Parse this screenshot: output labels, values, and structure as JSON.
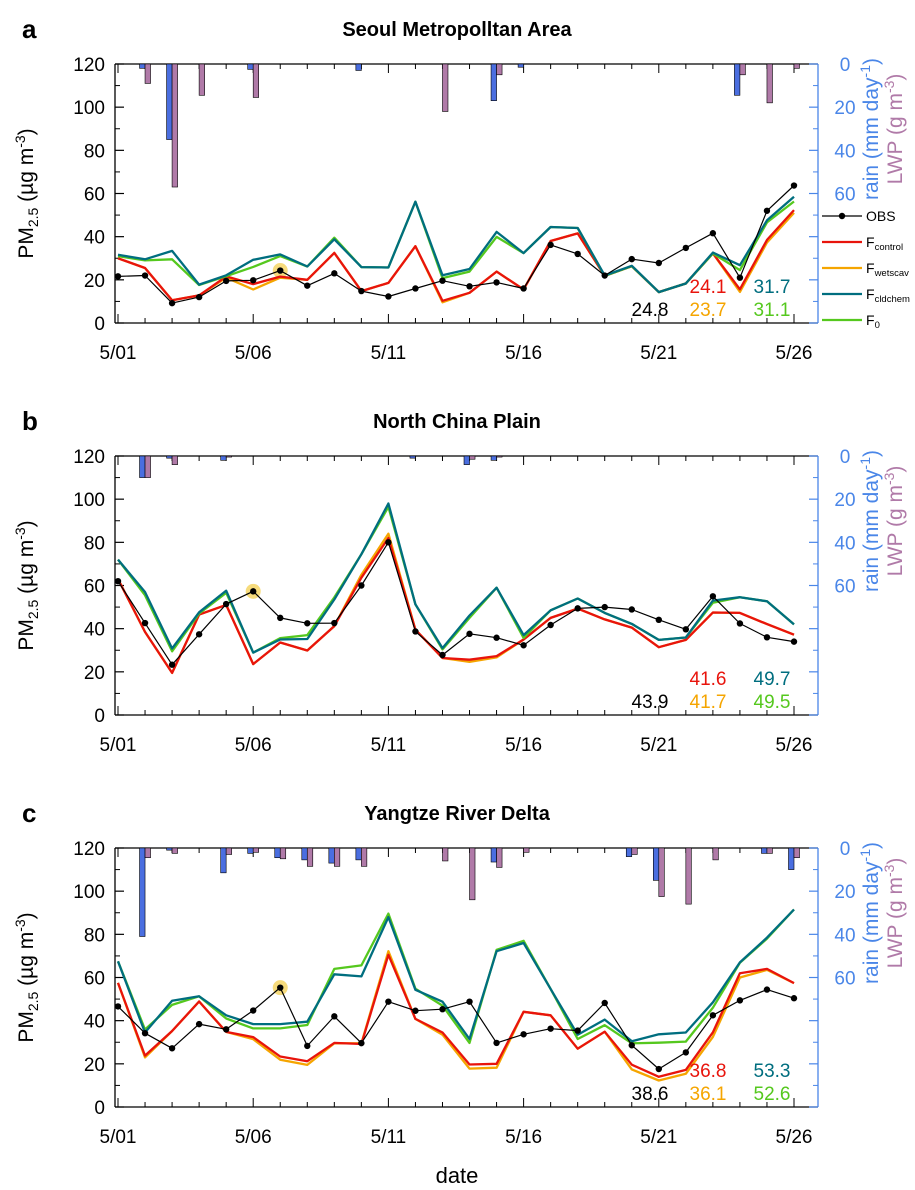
{
  "figure": {
    "xlabel": "date",
    "legend": [
      "OBS",
      "F",
      "F",
      "F",
      "F"
    ],
    "legend_sub": [
      "",
      "control",
      "wetscav",
      "cldchem",
      "0"
    ],
    "pm_label_main": "PM",
    "pm_label_sub": "2.5",
    "pm_label_unit": " (µg m",
    "pm_label_sup": "-3",
    "pm_label_end": ")",
    "rain_label_main": "rain (mm day",
    "rain_label_sup": "-1",
    "rain_label_end": ")",
    "lwp_label_main": "LWP (g m",
    "lwp_label_sup": "-3",
    "lwp_label_end": ")",
    "colors": {
      "obs": "#000000",
      "control": "#e8140c",
      "wetscav": "#f5a500",
      "cldchem": "#006e7f",
      "f0": "#55c81e",
      "rain": "#4a6ee0",
      "lwp": "#b07aa8",
      "right_axis": "#4a86e8",
      "highlight": "#f5d76e"
    }
  },
  "chart_data": [
    {
      "type": "line",
      "panel_letter": "a",
      "title": "Seoul Metropolltan Area",
      "x": [
        "5/01",
        "5/02",
        "5/03",
        "5/04",
        "5/05",
        "5/06",
        "5/07",
        "5/08",
        "5/09",
        "5/10",
        "5/11",
        "5/12",
        "5/13",
        "5/14",
        "5/15",
        "5/16",
        "5/17",
        "5/18",
        "5/19",
        "5/20",
        "5/21",
        "5/22",
        "5/23",
        "5/24",
        "5/25",
        "5/26"
      ],
      "x_ticks": [
        "5/01",
        "5/06",
        "5/11",
        "5/16",
        "5/21",
        "5/26"
      ],
      "ylim": [
        0,
        120
      ],
      "y_ticks": [
        0,
        20,
        40,
        60,
        80,
        100,
        120
      ],
      "rain_lim": [
        0,
        60
      ],
      "rain_ticks": [
        0,
        20,
        40,
        60
      ],
      "highlight_date": "5/07",
      "series": [
        {
          "key": "obs",
          "values": [
            21.6,
            22,
            9.2,
            12,
            19.5,
            19.8,
            24.3,
            17.3,
            23,
            14.8,
            12.3,
            16,
            19.6,
            17,
            18.8,
            16,
            36.2,
            32,
            22,
            29.6,
            27.8,
            34.8,
            41.6,
            21,
            52,
            63.7
          ]
        },
        {
          "key": "control",
          "values": [
            30,
            25.5,
            10.5,
            12.8,
            21.6,
            18,
            21.5,
            20,
            32.5,
            14.8,
            18.6,
            35.6,
            10.3,
            14,
            23.8,
            15.5,
            38,
            41.5,
            21.8,
            26.3,
            14.3,
            18.3,
            32.3,
            15.6,
            38.5,
            52.3
          ]
        },
        {
          "key": "wetscav",
          "values": [
            30,
            25.5,
            10.5,
            12.8,
            21,
            15.5,
            21,
            20,
            32.5,
            14.8,
            18.6,
            35.6,
            9.6,
            14,
            23.8,
            15.5,
            38,
            41.5,
            21.8,
            26.3,
            14.3,
            18.3,
            32.3,
            14.4,
            37.3,
            51
          ]
        },
        {
          "key": "cldchem",
          "values": [
            31.6,
            29.5,
            33.4,
            17.8,
            22.1,
            29.3,
            31.8,
            26.2,
            38.8,
            25.9,
            25.7,
            56.2,
            22.1,
            25,
            42.2,
            32.4,
            44.5,
            44,
            22,
            26.5,
            14.3,
            18.3,
            32.6,
            26.8,
            47.6,
            58.5
          ]
        },
        {
          "key": "f0",
          "values": [
            31,
            29,
            29.5,
            17.6,
            21.7,
            26,
            31,
            26.2,
            39.5,
            25.9,
            25.7,
            56.2,
            20.8,
            23.8,
            39.9,
            32.4,
            44.5,
            44,
            21.8,
            26.3,
            14.3,
            18.3,
            32.2,
            24.5,
            46.6,
            56.3
          ]
        }
      ],
      "rain": [
        0,
        2,
        35,
        0,
        0,
        2.5,
        0,
        0,
        0,
        3,
        0,
        0,
        0,
        0,
        17,
        1.5,
        0,
        0,
        0,
        0,
        0,
        0,
        0,
        14.5,
        0,
        0
      ],
      "lwp": [
        0,
        9,
        57,
        14.5,
        0,
        15.5,
        0,
        0,
        0,
        0,
        0,
        0,
        22,
        0,
        5,
        0,
        0,
        0,
        0,
        0,
        0,
        0,
        0,
        5,
        18,
        2
      ],
      "means": {
        "obs": "24.8",
        "control": "24.1",
        "wetscav": "23.7",
        "cldchem": "31.7",
        "f0": "31.1"
      }
    },
    {
      "type": "line",
      "panel_letter": "b",
      "title": "North China Plain",
      "x": [
        "5/01",
        "5/02",
        "5/03",
        "5/04",
        "5/05",
        "5/06",
        "5/07",
        "5/08",
        "5/09",
        "5/10",
        "5/11",
        "5/12",
        "5/13",
        "5/14",
        "5/15",
        "5/16",
        "5/17",
        "5/18",
        "5/19",
        "5/20",
        "5/21",
        "5/22",
        "5/23",
        "5/24",
        "5/25",
        "5/26"
      ],
      "x_ticks": [
        "5/01",
        "5/06",
        "5/11",
        "5/16",
        "5/21",
        "5/26"
      ],
      "ylim": [
        0,
        120
      ],
      "y_ticks": [
        0,
        20,
        40,
        60,
        80,
        100,
        120
      ],
      "rain_lim": [
        0,
        60
      ],
      "rain_ticks": [
        0,
        20,
        40,
        60
      ],
      "highlight_date": "5/06",
      "series": [
        {
          "key": "obs",
          "values": [
            62,
            42.6,
            23.3,
            37.4,
            51.4,
            57.3,
            45,
            42.5,
            42.6,
            60,
            80,
            38.7,
            27.8,
            37.6,
            35.8,
            32.3,
            41.7,
            49.4,
            50,
            48.9,
            44.1,
            39.7,
            55,
            42.4,
            36,
            34
          ]
        },
        {
          "key": "control",
          "values": [
            63,
            38.5,
            19.5,
            46.5,
            51,
            23.6,
            33.6,
            29.9,
            41.2,
            63.6,
            82,
            39.5,
            26.4,
            25.6,
            27.3,
            35,
            45,
            49.3,
            44.3,
            40.5,
            31.4,
            34.8,
            47.5,
            47.3,
            42.1,
            37.2
          ]
        },
        {
          "key": "wetscav",
          "values": [
            63,
            38.5,
            19.5,
            46.5,
            51,
            23.6,
            33.6,
            29.9,
            41.2,
            65,
            84,
            39.5,
            26.4,
            24.6,
            26.7,
            35,
            45,
            49.3,
            44.3,
            40.5,
            31.4,
            34.8,
            47.5,
            47.3,
            42.1,
            37.2
          ]
        },
        {
          "key": "cldchem",
          "values": [
            72,
            57,
            30.8,
            47.6,
            57.6,
            28.9,
            35,
            35.2,
            53.5,
            74.5,
            98,
            51.3,
            31,
            46.1,
            59,
            37,
            48.5,
            54,
            47.3,
            42.2,
            34.8,
            35.9,
            53,
            54.6,
            52.7,
            42
          ]
        },
        {
          "key": "f0",
          "values": [
            72,
            55.5,
            29.5,
            47,
            56.6,
            28.9,
            35.6,
            37,
            54.5,
            74.5,
            96.4,
            51.3,
            30.4,
            45,
            59,
            35.7,
            48.5,
            54,
            47.3,
            42.2,
            34.8,
            35.9,
            52,
            54.6,
            52.7,
            42
          ]
        }
      ],
      "rain": [
        0,
        10,
        1,
        0,
        2,
        0,
        0,
        0,
        0,
        0,
        0,
        1,
        0,
        4,
        2,
        0,
        0,
        0,
        0,
        0,
        0,
        0,
        0,
        0,
        0,
        0
      ],
      "lwp": [
        0,
        10,
        4,
        0,
        0.5,
        0,
        0,
        0,
        0,
        0,
        0,
        0,
        0,
        1.5,
        0.5,
        0,
        0,
        0,
        0,
        0,
        0,
        0,
        0,
        0,
        0,
        0
      ],
      "means": {
        "obs": "43.9",
        "control": "41.6",
        "wetscav": "41.7",
        "cldchem": "49.7",
        "f0": "49.5"
      }
    },
    {
      "type": "line",
      "panel_letter": "c",
      "title": "Yangtze River Delta",
      "x": [
        "5/01",
        "5/02",
        "5/03",
        "5/04",
        "5/05",
        "5/06",
        "5/07",
        "5/08",
        "5/09",
        "5/10",
        "5/11",
        "5/12",
        "5/13",
        "5/14",
        "5/15",
        "5/16",
        "5/17",
        "5/18",
        "5/19",
        "5/20",
        "5/21",
        "5/22",
        "5/23",
        "5/24",
        "5/25",
        "5/26"
      ],
      "x_ticks": [
        "5/01",
        "5/06",
        "5/11",
        "5/16",
        "5/21",
        "5/26"
      ],
      "ylim": [
        0,
        120
      ],
      "y_ticks": [
        0,
        20,
        40,
        60,
        80,
        100,
        120
      ],
      "rain_lim": [
        0,
        60
      ],
      "rain_ticks": [
        0,
        20,
        40,
        60
      ],
      "highlight_date": "5/07",
      "series": [
        {
          "key": "obs",
          "values": [
            46.6,
            34.2,
            27.2,
            38.4,
            36,
            44.7,
            55.3,
            28.3,
            42,
            29.6,
            48.8,
            44.6,
            45.3,
            48.8,
            29.7,
            33.7,
            36.3,
            35.4,
            48.2,
            28.6,
            17.6,
            25.3,
            42.5,
            49.4,
            54.4,
            50.4
          ]
        },
        {
          "key": "control",
          "values": [
            57.5,
            23.8,
            35.2,
            48.9,
            34.8,
            32.4,
            23.4,
            21.2,
            29.7,
            29.2,
            70.5,
            40.8,
            34.5,
            19.7,
            20,
            44.1,
            42.5,
            27,
            34.9,
            19.6,
            14,
            17.2,
            34.6,
            62,
            64,
            57.4
          ]
        },
        {
          "key": "wetscav",
          "values": [
            57.5,
            23,
            35.2,
            48.9,
            34.8,
            31.4,
            21.9,
            19.5,
            29.5,
            29.5,
            72.2,
            40.8,
            33.5,
            17.8,
            18.2,
            44.1,
            42.5,
            27,
            34.9,
            17.4,
            12.3,
            15.4,
            32.5,
            60,
            63.5,
            57.4
          ]
        },
        {
          "key": "cldchem",
          "values": [
            67.5,
            34.5,
            49.2,
            51.3,
            42.5,
            38.4,
            38.4,
            39.5,
            61.5,
            60.5,
            88,
            54.3,
            48.8,
            31.5,
            72.2,
            76,
            54.7,
            33.5,
            40.5,
            30.5,
            33.7,
            34.5,
            48.5,
            67,
            78.5,
            91.5
          ]
        },
        {
          "key": "f0",
          "values": [
            67.5,
            35.9,
            47.3,
            51.3,
            41,
            36.4,
            36.4,
            38,
            64,
            65.6,
            89.6,
            54.8,
            47,
            29.7,
            72.8,
            77,
            54.7,
            31.5,
            37.9,
            29.5,
            29.8,
            30.3,
            46,
            66.8,
            78,
            91.5
          ]
        }
      ],
      "rain": [
        0,
        41,
        1,
        0,
        11.5,
        2.5,
        4.5,
        5.5,
        7,
        5.5,
        0,
        0,
        0,
        0,
        6.5,
        0,
        0,
        0,
        0,
        4,
        15,
        0,
        0,
        0,
        2.5,
        10
      ],
      "lwp": [
        0,
        4.5,
        2.5,
        0,
        3,
        2,
        5,
        8.5,
        8.5,
        8.5,
        0,
        0,
        6,
        24,
        9,
        2,
        0,
        0,
        0,
        3,
        22.5,
        26,
        5.5,
        0,
        2.5,
        4.5
      ],
      "means": {
        "obs": "38.6",
        "control": "36.8",
        "wetscav": "36.1",
        "cldchem": "53.3",
        "f0": "52.6"
      }
    }
  ]
}
